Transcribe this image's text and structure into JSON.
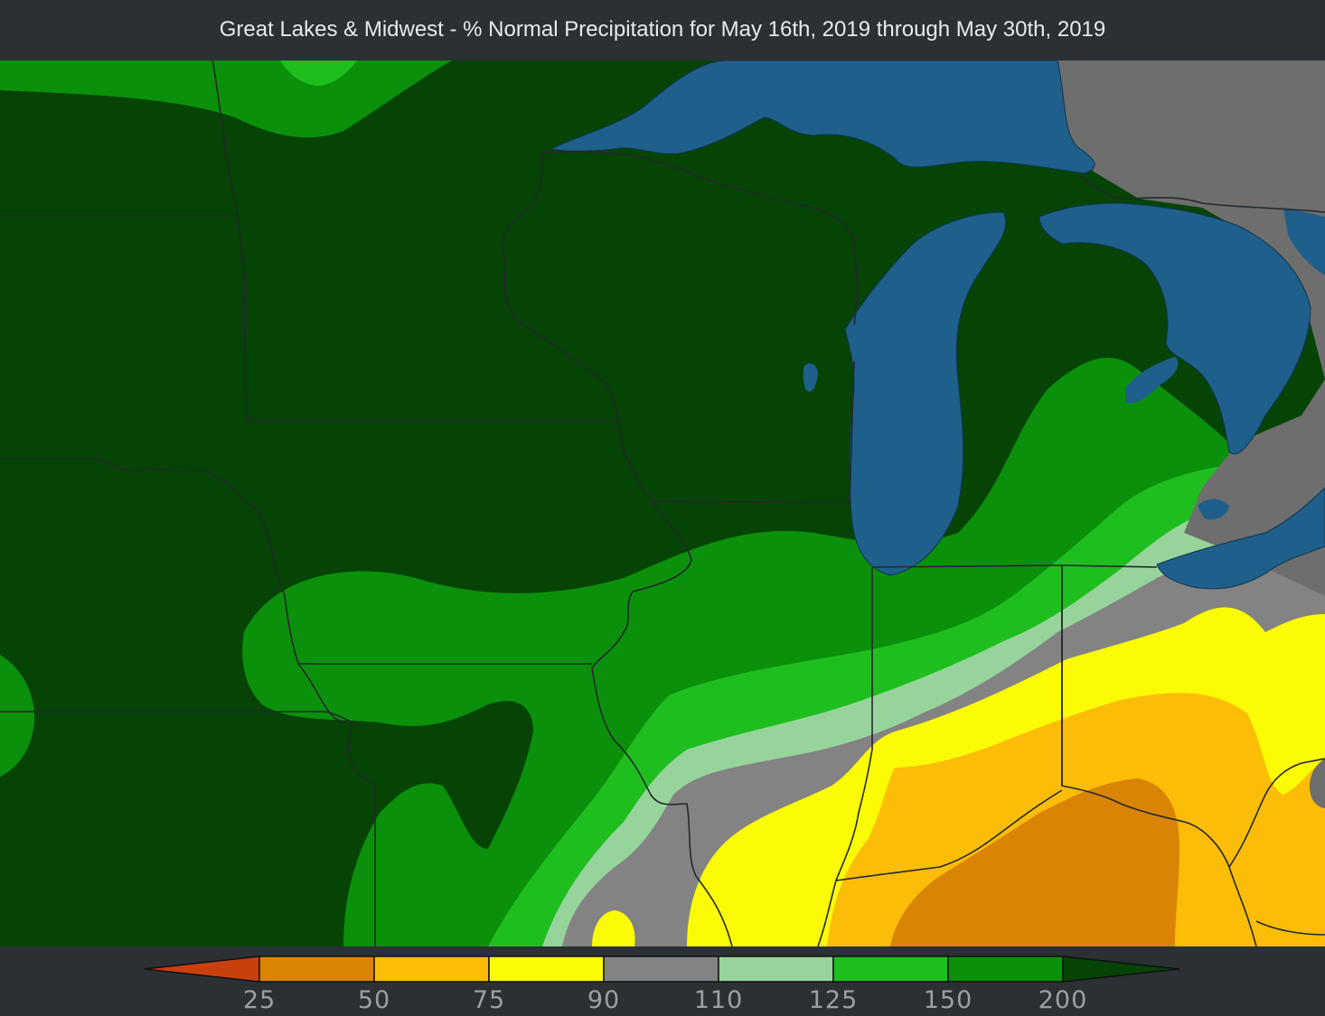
{
  "title": "Great Lakes & Midwest - % Normal Precipitation for May 16th, 2019 through May 30th, 2019",
  "colors": {
    "background": "#2b3035",
    "water": "#1f5f8b",
    "no_data": "#6e6e6e",
    "border": "#22272b"
  },
  "legend": {
    "unit": "% of normal",
    "ticks": [
      "25",
      "50",
      "75",
      "90",
      "110",
      "125",
      "150",
      "200"
    ],
    "bins": [
      {
        "range": "< 25",
        "color": "#c8400e"
      },
      {
        "range": "25-50",
        "color": "#d98405"
      },
      {
        "range": "50-75",
        "color": "#fbbd07"
      },
      {
        "range": "75-90",
        "color": "#fbfb06"
      },
      {
        "range": "90-110",
        "color": "#838383"
      },
      {
        "range": "110-125",
        "color": "#97d49b"
      },
      {
        "range": "125-150",
        "color": "#1fbe1f"
      },
      {
        "range": "150-200",
        "color": "#0b900b"
      },
      {
        "range": "> 200",
        "color": "#054405"
      }
    ]
  }
}
